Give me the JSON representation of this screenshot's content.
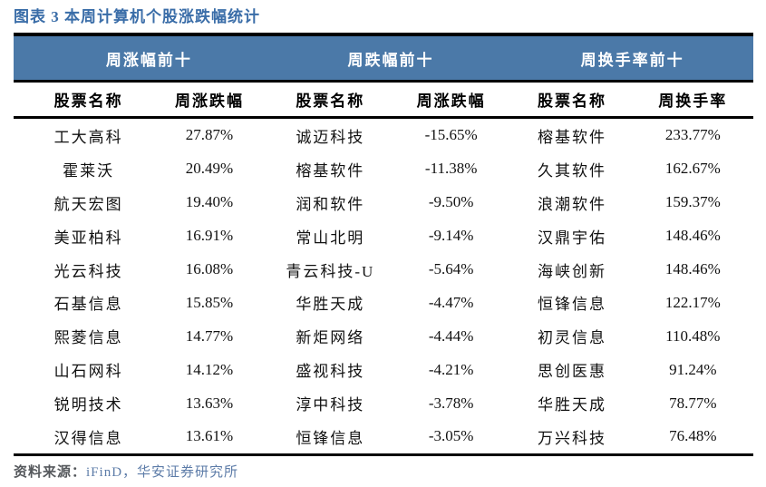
{
  "title": "图表 3 本周计算机个股涨跌幅统计",
  "colors": {
    "title_blue": "#3a6da8",
    "band_blue": "#4b79a8",
    "band_text": "#ffffff",
    "border_black": "#000000",
    "source_text_blue": "#5d7ca8"
  },
  "table": {
    "sections": [
      {
        "header": "周涨幅前十",
        "col_name": "股票名称",
        "col_value": "周涨跌幅",
        "rows": [
          {
            "name": "工大高科",
            "value": "27.87%"
          },
          {
            "name": "霍莱沃",
            "value": "20.49%"
          },
          {
            "name": "航天宏图",
            "value": "19.40%"
          },
          {
            "name": "美亚柏科",
            "value": "16.91%"
          },
          {
            "name": "光云科技",
            "value": "16.08%"
          },
          {
            "name": "石基信息",
            "value": "15.85%"
          },
          {
            "name": "熙菱信息",
            "value": "14.77%"
          },
          {
            "name": "山石网科",
            "value": "14.12%"
          },
          {
            "name": "锐明技术",
            "value": "13.63%"
          },
          {
            "name": "汉得信息",
            "value": "13.61%"
          }
        ]
      },
      {
        "header": "周跌幅前十",
        "col_name": "股票名称",
        "col_value": "周涨跌幅",
        "rows": [
          {
            "name": "诚迈科技",
            "value": "-15.65%"
          },
          {
            "name": "榕基软件",
            "value": "-11.38%"
          },
          {
            "name": "润和软件",
            "value": "-9.50%"
          },
          {
            "name": "常山北明",
            "value": "-9.14%"
          },
          {
            "name": "青云科技-U",
            "value": "-5.64%"
          },
          {
            "name": "华胜天成",
            "value": "-4.47%"
          },
          {
            "name": "新炬网络",
            "value": "-4.44%"
          },
          {
            "name": "盛视科技",
            "value": "-4.21%"
          },
          {
            "name": "淳中科技",
            "value": "-3.78%"
          },
          {
            "name": "恒锋信息",
            "value": "-3.05%"
          }
        ]
      },
      {
        "header": "周换手率前十",
        "col_name": "股票名称",
        "col_value": "周换手率",
        "rows": [
          {
            "name": "榕基软件",
            "value": "233.77%"
          },
          {
            "name": "久其软件",
            "value": "162.67%"
          },
          {
            "name": "浪潮软件",
            "value": "159.37%"
          },
          {
            "name": "汉鼎宇佑",
            "value": "148.46%"
          },
          {
            "name": "海峡创新",
            "value": "148.46%"
          },
          {
            "name": "恒锋信息",
            "value": "122.17%"
          },
          {
            "name": "初灵信息",
            "value": "110.48%"
          },
          {
            "name": "思创医惠",
            "value": "91.24%"
          },
          {
            "name": "华胜天成",
            "value": "78.77%"
          },
          {
            "name": "万兴科技",
            "value": "76.48%"
          }
        ]
      }
    ]
  },
  "footer": {
    "prefix": "资料来源：",
    "source": "iFinD，华安证券研究所"
  }
}
